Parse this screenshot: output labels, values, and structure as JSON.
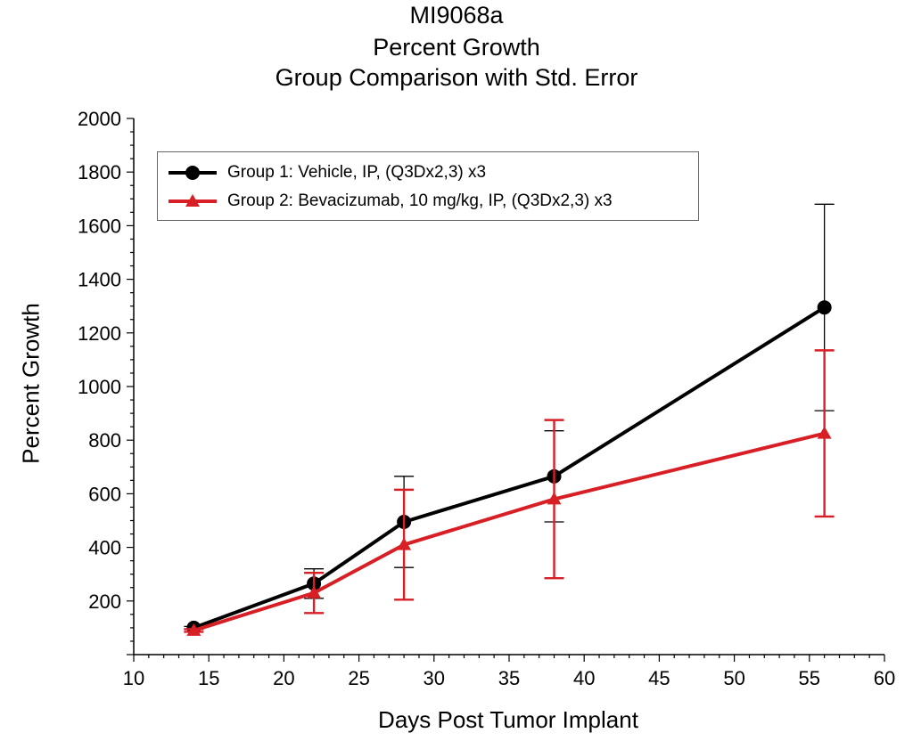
{
  "chart_data": {
    "type": "line",
    "title": [
      "MI9068a",
      "Percent Growth",
      "Group Comparison with Std. Error"
    ],
    "xlabel": "Days Post Tumor Implant",
    "ylabel": "Percent Growth",
    "xlim": [
      10,
      60
    ],
    "ylim": [
      0,
      2000
    ],
    "xticks": [
      10,
      15,
      20,
      25,
      30,
      35,
      40,
      45,
      50,
      55,
      60
    ],
    "yticks": [
      200,
      400,
      600,
      800,
      1000,
      1200,
      1400,
      1600,
      1800,
      2000
    ],
    "grid": false,
    "legend_position": "top-left",
    "series": [
      {
        "name": "Group 1: Vehicle, IP, (Q3Dx2,3) x3",
        "color": "#000000",
        "marker": "circle",
        "x": [
          14,
          22,
          28,
          38,
          56
        ],
        "y": [
          100,
          265,
          495,
          665,
          1295
        ],
        "err": [
          5,
          55,
          170,
          170,
          385
        ]
      },
      {
        "name": "Group 2:  Bevacizumab, 10 mg/kg, IP, (Q3Dx2,3) x3",
        "color": "#d81f26",
        "marker": "triangle",
        "x": [
          14,
          22,
          28,
          38,
          56
        ],
        "y": [
          90,
          230,
          410,
          580,
          825
        ],
        "err": [
          5,
          75,
          205,
          295,
          310
        ]
      }
    ]
  }
}
